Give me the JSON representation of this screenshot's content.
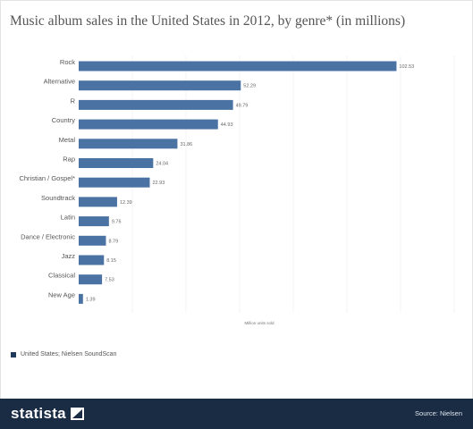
{
  "title": "Music album sales in the United States in 2012, by genre* (in millions)",
  "legend": "United States; Nielsen SoundScan",
  "footer": {
    "brand": "statista",
    "source": "Source: Nielsen"
  },
  "colors": {
    "bar": "#4a72a3",
    "footer_bg": "#1a2b44",
    "grid": "#ececec"
  },
  "chart_data": {
    "type": "bar",
    "orientation": "horizontal",
    "title": "Music album sales in the United States in 2012, by genre* (in millions)",
    "xlabel": "Million units sold",
    "categories": [
      "Rock",
      "Alternative",
      "R",
      "Country",
      "Metal",
      "Rap",
      "Christian / Gospel*",
      "Soundtrack",
      "Latin",
      "Dance / Electronic",
      "Jazz",
      "Classical",
      "New Age"
    ],
    "values": [
      102.53,
      52.29,
      49.79,
      44.93,
      31.86,
      24.04,
      22.93,
      12.39,
      9.76,
      8.79,
      8.15,
      7.53,
      1.39
    ],
    "xlim": [
      0,
      105
    ],
    "grid": true,
    "legend_position": "bottom-left"
  }
}
